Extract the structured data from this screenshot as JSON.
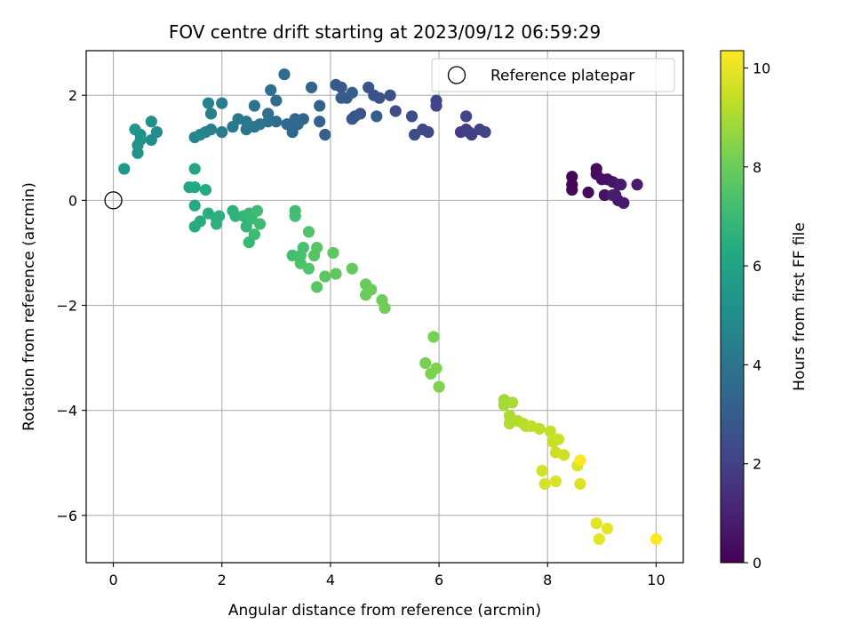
{
  "chart_data": {
    "type": "scatter",
    "title": "FOV centre drift starting at 2023/09/12 06:59:29",
    "xlabel": "Angular distance from reference (arcmin)",
    "ylabel": "Rotation from reference (arcmin)",
    "xlim": [
      -0.5,
      10.5
    ],
    "ylim": [
      -6.9,
      2.85
    ],
    "x_ticks": [
      0,
      2,
      4,
      6,
      8,
      10
    ],
    "y_ticks": [
      -6,
      -4,
      -2,
      0,
      2
    ],
    "x_tick_labels": [
      "0",
      "2",
      "4",
      "6",
      "8",
      "10"
    ],
    "y_tick_labels": [
      "−6",
      "−4",
      "−2",
      "0",
      "2"
    ],
    "grid": true,
    "legend": {
      "placement": "top-right",
      "entries": [
        "Reference platepar"
      ]
    },
    "reference_point": {
      "x": 0,
      "y": 0
    },
    "colorbar": {
      "label": "Hours from first FF file",
      "colormap": "viridis",
      "range": [
        0,
        10.35
      ],
      "ticks": [
        0,
        2,
        4,
        6,
        8,
        10
      ],
      "tick_labels": [
        "0",
        "2",
        "4",
        "6",
        "8",
        "10"
      ]
    },
    "point_fields": [
      "x",
      "y",
      "hours"
    ],
    "points": [
      [
        8.45,
        0.45,
        0.1
      ],
      [
        8.45,
        0.3,
        0.15
      ],
      [
        8.45,
        0.2,
        0.2
      ],
      [
        8.75,
        0.15,
        0.25
      ],
      [
        8.9,
        0.6,
        0.3
      ],
      [
        8.9,
        0.5,
        0.35
      ],
      [
        9.0,
        0.4,
        0.4
      ],
      [
        9.1,
        0.4,
        0.45
      ],
      [
        9.05,
        0.1,
        0.5
      ],
      [
        9.2,
        0.35,
        0.55
      ],
      [
        9.3,
        0.3,
        0.6
      ],
      [
        9.25,
        0.1,
        0.65
      ],
      [
        9.3,
        0.0,
        0.7
      ],
      [
        9.4,
        -0.05,
        0.75
      ],
      [
        9.35,
        0.3,
        0.8
      ],
      [
        9.2,
        0.1,
        0.85
      ],
      [
        9.65,
        0.3,
        0.9
      ],
      [
        6.4,
        1.3,
        1.8
      ],
      [
        6.5,
        1.35,
        1.85
      ],
      [
        6.55,
        1.3,
        1.9
      ],
      [
        6.6,
        1.25,
        1.95
      ],
      [
        6.75,
        1.35,
        2.0
      ],
      [
        6.85,
        1.3,
        2.05
      ],
      [
        6.5,
        1.6,
        2.1
      ],
      [
        5.95,
        1.9,
        2.15
      ],
      [
        5.95,
        1.8,
        2.2
      ],
      [
        5.8,
        1.3,
        2.25
      ],
      [
        5.7,
        1.35,
        2.3
      ],
      [
        5.55,
        1.25,
        2.35
      ],
      [
        5.5,
        1.6,
        2.4
      ],
      [
        5.2,
        1.7,
        2.45
      ],
      [
        5.1,
        2.0,
        2.5
      ],
      [
        4.9,
        1.95,
        2.55
      ],
      [
        4.8,
        2.0,
        2.6
      ],
      [
        4.7,
        2.15,
        2.65
      ],
      [
        4.55,
        1.65,
        2.7
      ],
      [
        4.45,
        1.6,
        2.75
      ],
      [
        4.4,
        1.55,
        2.8
      ],
      [
        4.2,
        2.15,
        2.85
      ],
      [
        4.1,
        2.2,
        2.9
      ],
      [
        4.2,
        1.95,
        2.95
      ],
      [
        4.3,
        1.95,
        3.0
      ],
      [
        4.85,
        1.6,
        3.05
      ],
      [
        4.4,
        2.05,
        3.1
      ],
      [
        3.9,
        1.25,
        3.15
      ],
      [
        3.8,
        1.5,
        3.2
      ],
      [
        3.8,
        1.8,
        3.25
      ],
      [
        3.65,
        2.15,
        3.3
      ],
      [
        3.5,
        1.55,
        3.35
      ],
      [
        3.4,
        1.45,
        3.4
      ],
      [
        3.3,
        1.3,
        3.45
      ],
      [
        3.35,
        1.55,
        3.5
      ],
      [
        3.2,
        1.45,
        3.55
      ],
      [
        3.15,
        2.4,
        3.6
      ],
      [
        3.0,
        1.9,
        3.65
      ],
      [
        3.0,
        1.5,
        3.7
      ],
      [
        2.9,
        2.1,
        3.75
      ],
      [
        2.85,
        1.65,
        3.8
      ],
      [
        2.85,
        1.5,
        3.85
      ],
      [
        2.7,
        1.45,
        3.9
      ],
      [
        2.6,
        1.8,
        3.95
      ],
      [
        2.6,
        1.4,
        4.0
      ],
      [
        2.45,
        1.35,
        4.05
      ],
      [
        2.45,
        1.5,
        4.1
      ],
      [
        2.3,
        1.55,
        4.15
      ],
      [
        2.2,
        1.4,
        4.2
      ],
      [
        2.0,
        1.3,
        4.3
      ],
      [
        2.0,
        1.85,
        4.35
      ],
      [
        1.8,
        1.65,
        4.4
      ],
      [
        1.8,
        1.35,
        4.45
      ],
      [
        1.7,
        1.3,
        4.5
      ],
      [
        1.75,
        1.85,
        4.55
      ],
      [
        1.6,
        1.25,
        4.6
      ],
      [
        1.5,
        1.2,
        4.7
      ],
      [
        0.8,
        1.3,
        5.0
      ],
      [
        0.7,
        1.15,
        5.05
      ],
      [
        0.7,
        1.5,
        5.1
      ],
      [
        0.5,
        1.25,
        5.15
      ],
      [
        0.5,
        1.15,
        5.2
      ],
      [
        0.45,
        1.05,
        5.25
      ],
      [
        0.45,
        0.9,
        5.3
      ],
      [
        0.4,
        1.35,
        5.35
      ],
      [
        0.2,
        0.6,
        5.4
      ],
      [
        1.5,
        0.6,
        6.1
      ],
      [
        1.4,
        0.25,
        6.15
      ],
      [
        1.5,
        0.25,
        6.2
      ],
      [
        1.7,
        0.2,
        6.25
      ],
      [
        1.5,
        -0.1,
        6.3
      ],
      [
        1.5,
        -0.5,
        6.35
      ],
      [
        1.6,
        -0.4,
        6.4
      ],
      [
        1.75,
        -0.25,
        6.45
      ],
      [
        1.9,
        -0.35,
        6.5
      ],
      [
        1.95,
        -0.3,
        6.55
      ],
      [
        1.9,
        -0.45,
        6.6
      ],
      [
        2.2,
        -0.2,
        6.65
      ],
      [
        2.25,
        -0.3,
        6.7
      ],
      [
        2.4,
        -0.3,
        6.75
      ],
      [
        2.45,
        -0.5,
        6.8
      ],
      [
        2.5,
        -0.25,
        6.85
      ],
      [
        2.5,
        -0.8,
        6.9
      ],
      [
        2.55,
        -0.35,
        6.95
      ],
      [
        2.6,
        -0.65,
        7.0
      ],
      [
        2.65,
        -0.2,
        7.05
      ],
      [
        2.7,
        -0.45,
        7.1
      ],
      [
        3.35,
        -0.2,
        7.15
      ],
      [
        3.35,
        -0.3,
        7.2
      ],
      [
        3.3,
        -1.05,
        7.25
      ],
      [
        3.45,
        -1.05,
        7.3
      ],
      [
        3.5,
        -0.9,
        7.35
      ],
      [
        3.45,
        -1.2,
        7.4
      ],
      [
        3.6,
        -0.6,
        7.45
      ],
      [
        3.6,
        -1.3,
        7.5
      ],
      [
        3.7,
        -1.05,
        7.55
      ],
      [
        3.75,
        -0.9,
        7.6
      ],
      [
        3.75,
        -1.65,
        7.65
      ],
      [
        3.9,
        -1.45,
        7.7
      ],
      [
        4.05,
        -1.0,
        7.75
      ],
      [
        4.1,
        -1.4,
        7.8
      ],
      [
        4.4,
        -1.3,
        7.85
      ],
      [
        4.65,
        -1.6,
        7.9
      ],
      [
        4.65,
        -1.8,
        7.95
      ],
      [
        4.75,
        -1.7,
        8.0
      ],
      [
        4.95,
        -1.9,
        8.05
      ],
      [
        5.0,
        -2.05,
        8.1
      ],
      [
        5.9,
        -2.6,
        8.2
      ],
      [
        5.75,
        -3.1,
        8.25
      ],
      [
        5.85,
        -3.3,
        8.3
      ],
      [
        5.95,
        -3.2,
        8.35
      ],
      [
        6.0,
        -3.55,
        8.4
      ],
      [
        7.2,
        -3.8,
        8.9
      ],
      [
        7.2,
        -3.9,
        8.95
      ],
      [
        7.35,
        -3.85,
        9.0
      ],
      [
        7.3,
        -4.1,
        9.05
      ],
      [
        7.3,
        -4.25,
        9.1
      ],
      [
        7.45,
        -4.2,
        9.15
      ],
      [
        7.55,
        -4.25,
        9.2
      ],
      [
        7.6,
        -4.3,
        9.25
      ],
      [
        7.7,
        -4.3,
        9.3
      ],
      [
        7.85,
        -4.35,
        9.35
      ],
      [
        8.05,
        -4.4,
        9.4
      ],
      [
        8.1,
        -4.6,
        9.45
      ],
      [
        8.2,
        -4.55,
        9.5
      ],
      [
        8.15,
        -4.8,
        9.55
      ],
      [
        8.3,
        -4.85,
        9.6
      ],
      [
        7.9,
        -5.15,
        9.65
      ],
      [
        7.95,
        -5.4,
        9.7
      ],
      [
        8.15,
        -5.35,
        9.75
      ],
      [
        8.55,
        -5.05,
        9.8
      ],
      [
        8.6,
        -5.4,
        9.85
      ],
      [
        8.9,
        -6.15,
        9.9
      ],
      [
        8.95,
        -6.45,
        9.95
      ],
      [
        9.1,
        -6.25,
        10.0
      ],
      [
        8.6,
        -4.95,
        10.3
      ],
      [
        10.0,
        -6.45,
        10.35
      ]
    ]
  }
}
